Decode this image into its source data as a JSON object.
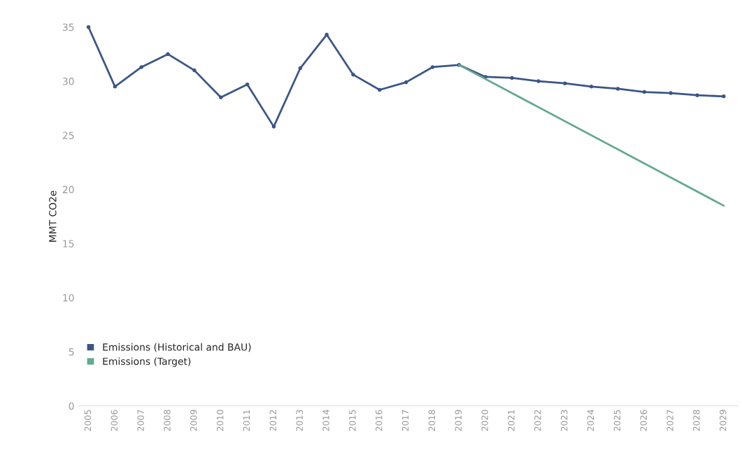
{
  "chart_data": {
    "type": "line",
    "ylabel": "MMT CO2e",
    "categories": [
      "2005",
      "2006",
      "2007",
      "2008",
      "2009",
      "2010",
      "2011",
      "2012",
      "2013",
      "2014",
      "2015",
      "2016",
      "2017",
      "2018",
      "2019",
      "2020",
      "2021",
      "2022",
      "2023",
      "2024",
      "2025",
      "2026",
      "2027",
      "2028",
      "2029"
    ],
    "series": [
      {
        "name": "Emissions (Historical and BAU)",
        "color": "#3b5686",
        "marker": "circle",
        "values": [
          35.0,
          29.5,
          31.3,
          32.5,
          31.0,
          28.5,
          29.7,
          25.8,
          31.2,
          34.3,
          30.6,
          29.2,
          29.9,
          31.3,
          31.5,
          30.4,
          30.3,
          30.0,
          29.8,
          29.5,
          29.3,
          29.0,
          28.9,
          28.7,
          28.6
        ]
      },
      {
        "name": "Emissions (Target)",
        "color": "#62a98f",
        "marker": "none",
        "values": [
          null,
          null,
          null,
          null,
          null,
          null,
          null,
          null,
          null,
          null,
          null,
          null,
          null,
          null,
          31.5,
          null,
          null,
          null,
          null,
          null,
          null,
          null,
          null,
          null,
          18.5
        ]
      }
    ],
    "ylim": [
      0,
      35
    ],
    "yticks": [
      0,
      5,
      10,
      15,
      20,
      25,
      30,
      35
    ],
    "grid": false,
    "legend": "bottom left"
  }
}
